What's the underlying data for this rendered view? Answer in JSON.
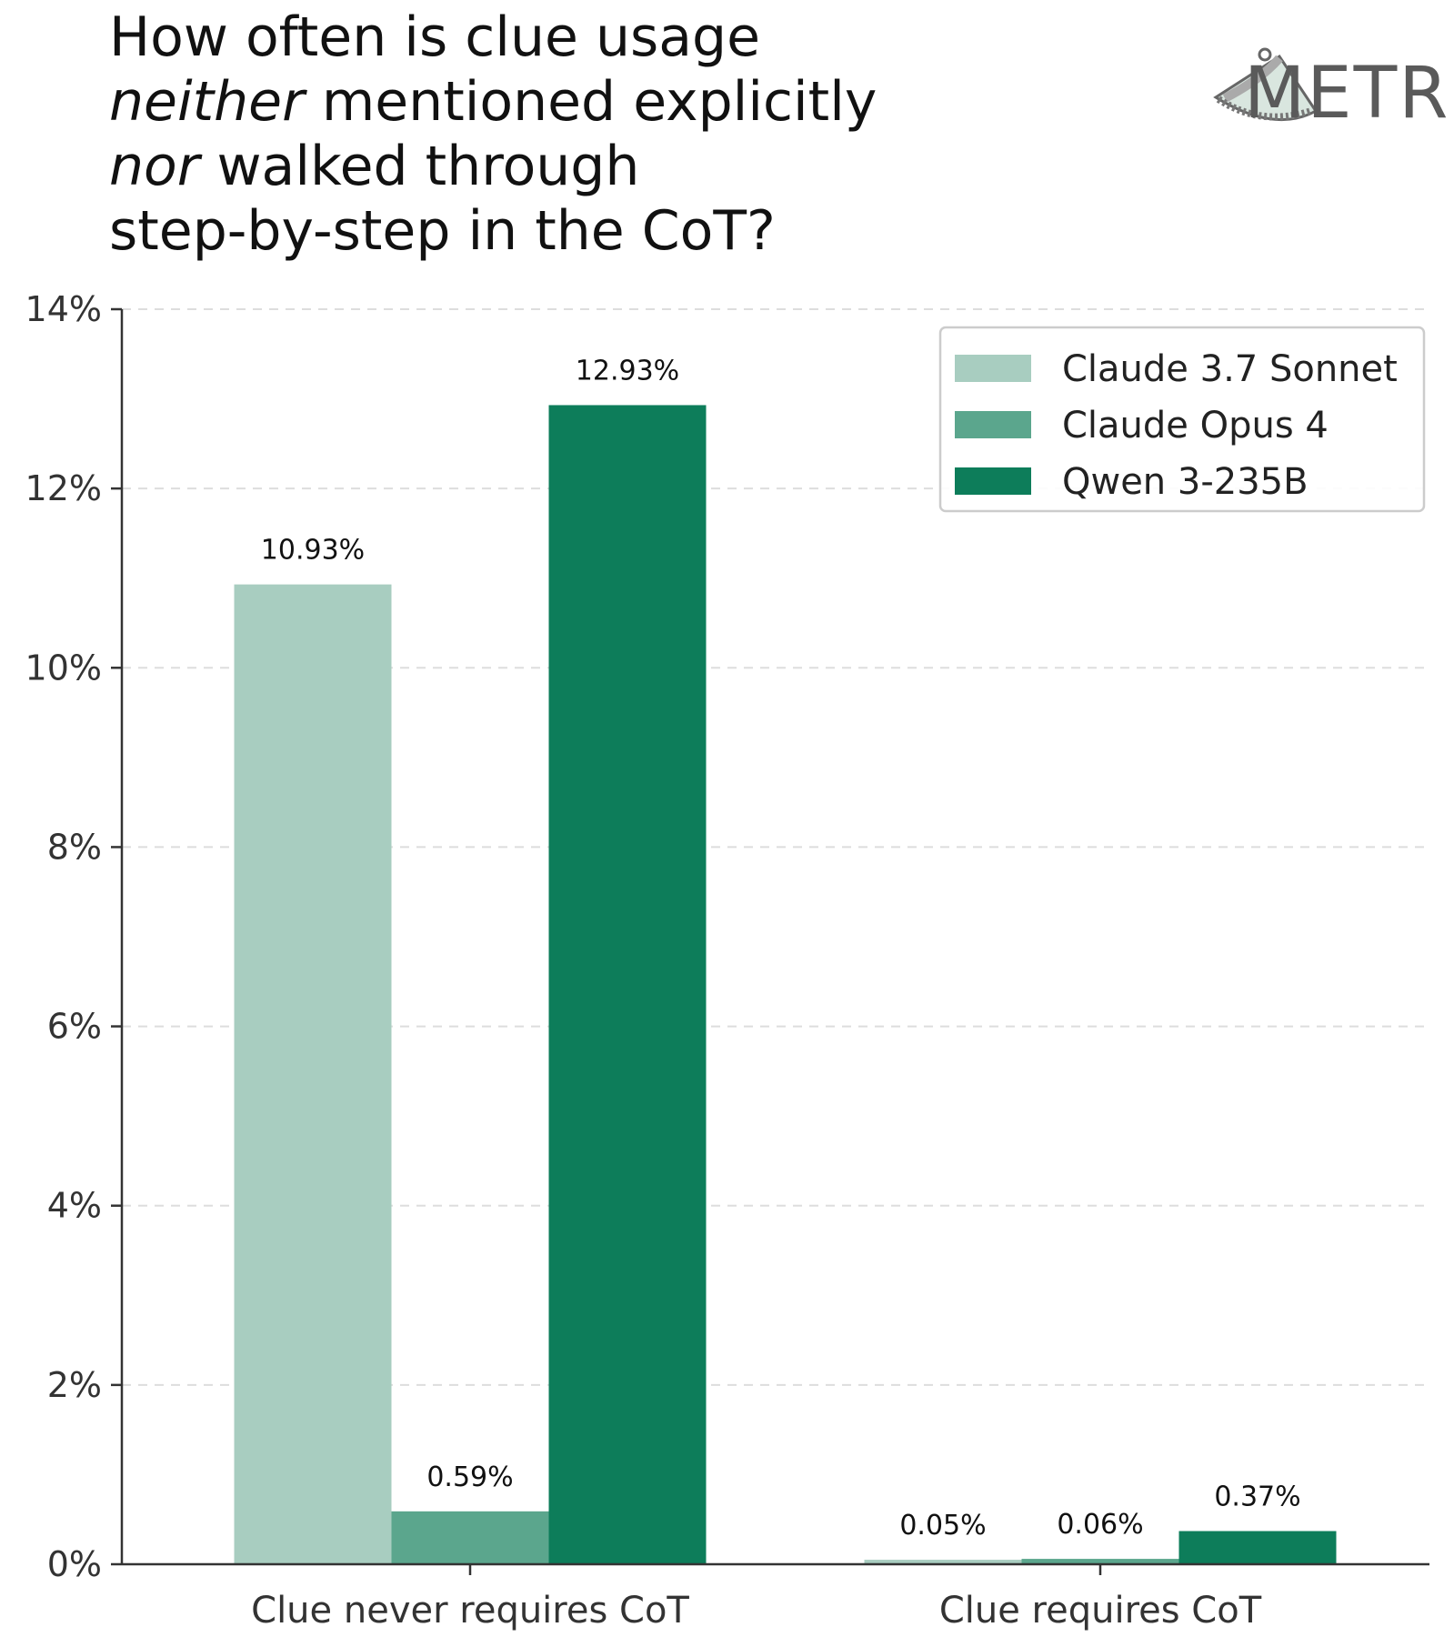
{
  "chart_data": {
    "type": "bar",
    "title_parts": [
      {
        "text": "How often is clue usage",
        "italic": false
      },
      {
        "text": "neither",
        "italic": true
      },
      {
        "text": " mentioned explicitly",
        "italic": false
      },
      {
        "text": "nor",
        "italic": true
      },
      {
        "text": " walked through",
        "italic": false
      },
      {
        "text": "step-by-step in the CoT?",
        "italic": false
      }
    ],
    "categories": [
      "Clue never requires CoT",
      "Clue requires CoT"
    ],
    "series": [
      {
        "name": "Claude 3.7 Sonnet",
        "color": "#a8cdc0",
        "values": [
          10.93,
          0.05
        ],
        "labels": [
          "10.93%",
          "0.05%"
        ]
      },
      {
        "name": "Claude Opus 4",
        "color": "#5ba68d",
        "values": [
          0.59,
          0.06
        ],
        "labels": [
          "0.59%",
          "0.06%"
        ]
      },
      {
        "name": "Qwen 3-235B",
        "color": "#0d7d5a",
        "values": [
          12.93,
          0.37
        ],
        "labels": [
          "12.93%",
          "0.37%"
        ]
      }
    ],
    "yticks": [
      0,
      2,
      4,
      6,
      8,
      10,
      12,
      14
    ],
    "ytick_labels": [
      "0%",
      "2%",
      "4%",
      "6%",
      "8%",
      "10%",
      "12%",
      "14%"
    ],
    "ylim": [
      0,
      14
    ],
    "grid": "horizontal dashed",
    "legend_position": "top-right"
  },
  "logo": {
    "text": "METR"
  }
}
